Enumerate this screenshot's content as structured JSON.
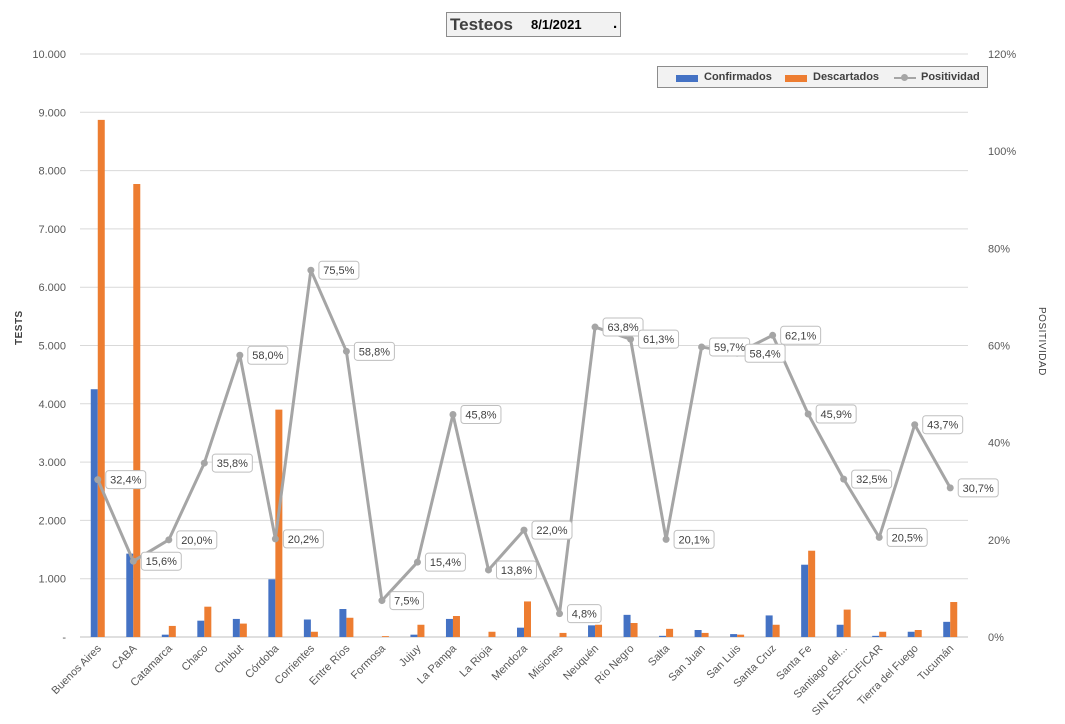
{
  "title": {
    "main": "Testeos",
    "date": "8/1/2021",
    "dot": "."
  },
  "legend": {
    "confirmados": "Confirmados",
    "descartados": "Descartados",
    "positividad": "Positividad"
  },
  "axes": {
    "left_label": "TESTS",
    "right_label": "POSITIVIDAD"
  },
  "colors": {
    "confirmados": "#4472c4",
    "descartados": "#ed7d31",
    "positividad": "#a5a5a5"
  },
  "chart_data": {
    "type": "bar",
    "categories": [
      "Buenos Aires",
      "CABA",
      "Catamarca",
      "Chaco",
      "Chubut",
      "Córdoba",
      "Corrientes",
      "Entre Ríos",
      "Formosa",
      "Jujuy",
      "La Pampa",
      "La Rioja",
      "Mendoza",
      "Misiones",
      "Neuquén",
      "Río Negro",
      "Salta",
      "San Juan",
      "San Luis",
      "Santa Cruz",
      "Santa Fe",
      "Santiago del...",
      "SIN ESPECIFICAR",
      "Tierra del Fuego",
      "Tucumán"
    ],
    "series": [
      {
        "name": "Confirmados",
        "type": "bar",
        "axis": "left",
        "values": [
          4250,
          1430,
          40,
          280,
          310,
          990,
          300,
          480,
          0,
          40,
          310,
          0,
          160,
          0,
          200,
          380,
          20,
          120,
          50,
          370,
          1240,
          210,
          20,
          90,
          260
        ]
      },
      {
        "name": "Descartados",
        "type": "bar",
        "axis": "left",
        "values": [
          8870,
          7770,
          190,
          520,
          230,
          3900,
          90,
          330,
          15,
          210,
          360,
          90,
          610,
          70,
          210,
          240,
          140,
          70,
          40,
          210,
          1480,
          470,
          90,
          120,
          600
        ]
      },
      {
        "name": "Positividad",
        "type": "line",
        "axis": "right",
        "values": [
          32.4,
          15.6,
          20.0,
          35.8,
          58.0,
          20.2,
          75.5,
          58.8,
          7.5,
          15.4,
          45.8,
          13.8,
          22.0,
          4.8,
          63.8,
          61.3,
          20.1,
          59.7,
          58.4,
          62.1,
          45.9,
          32.5,
          20.5,
          43.7,
          30.7
        ],
        "labels": [
          "32,4%",
          "15,6%",
          "20,0%",
          "35,8%",
          "58,0%",
          "20,2%",
          "75,5%",
          "58,8%",
          "7,5%",
          "15,4%",
          "45,8%",
          "13,8%",
          "22,0%",
          "4,8%",
          "63,8%",
          "61,3%",
          "20,1%",
          "59,7%",
          "58,4%",
          "62,1%",
          "45,9%",
          "32,5%",
          "20,5%",
          "43,7%",
          "30,7%"
        ]
      }
    ],
    "ylim": [
      0,
      10000
    ],
    "ylim_right": [
      0,
      120
    ],
    "yticks": [
      "-",
      "1.000",
      "2.000",
      "3.000",
      "4.000",
      "5.000",
      "6.000",
      "7.000",
      "8.000",
      "9.000",
      "10.000"
    ],
    "yticks_right": [
      "0%",
      "20%",
      "40%",
      "60%",
      "80%",
      "100%",
      "120%"
    ],
    "ylabel": "TESTS",
    "ylabel_right": "POSITIVIDAD",
    "grid": true,
    "legend_position": "top-right"
  }
}
